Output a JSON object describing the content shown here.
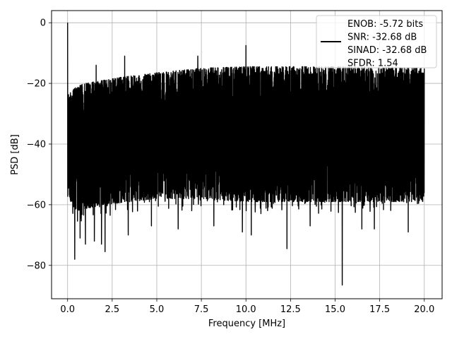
{
  "chart_data": {
    "type": "line",
    "title": "",
    "xlabel": "Frequency [MHz]",
    "ylabel": "PSD [dB]",
    "xlim": [
      -0.9,
      21.0
    ],
    "ylim": [
      -91,
      4
    ],
    "grid": true,
    "legend_placement": "top-right",
    "xticks": [
      0.0,
      2.5,
      5.0,
      7.5,
      10.0,
      12.5,
      15.0,
      17.5,
      20.0
    ],
    "xtick_labels": [
      "0.0",
      "2.5",
      "5.0",
      "7.5",
      "10.0",
      "12.5",
      "15.0",
      "17.5",
      "20.0"
    ],
    "yticks": [
      0,
      -20,
      -40,
      -60,
      -80
    ],
    "ytick_labels": [
      "0",
      "−20",
      "−40",
      "−60",
      "−80"
    ],
    "series": [
      {
        "name": "ENOB: -5.72 bits\nSNR: -32.68 dB\nSINAD: -32.68 dB\nSFDR: 1.54",
        "color": "#000000",
        "x_range": [
          0.0,
          20.0
        ],
        "envelope_upper": [
          [
            0.0,
            -24
          ],
          [
            0.5,
            -21
          ],
          [
            1.0,
            -20
          ],
          [
            2.0,
            -19
          ],
          [
            3.0,
            -18
          ],
          [
            5.0,
            -16.5
          ],
          [
            7.5,
            -15
          ],
          [
            10.0,
            -14.5
          ],
          [
            12.5,
            -14.5
          ],
          [
            15.0,
            -14.5
          ],
          [
            17.5,
            -14.5
          ],
          [
            20.0,
            -15
          ]
        ],
        "envelope_lower": [
          [
            0.0,
            -58
          ],
          [
            0.5,
            -62
          ],
          [
            2.0,
            -60
          ],
          [
            5.0,
            -58
          ],
          [
            7.5,
            -58
          ],
          [
            10.0,
            -59
          ],
          [
            12.5,
            -59
          ],
          [
            15.0,
            -59
          ],
          [
            17.5,
            -59
          ],
          [
            20.0,
            -59
          ]
        ],
        "peaks": [
          {
            "x": 0.0,
            "y": 0.0
          },
          {
            "x": 1.6,
            "y": -14
          },
          {
            "x": 3.2,
            "y": -11
          },
          {
            "x": 7.3,
            "y": -11
          },
          {
            "x": 10.0,
            "y": -7.5
          }
        ],
        "dips": [
          {
            "x": 0.4,
            "y": -78
          },
          {
            "x": 0.7,
            "y": -71
          },
          {
            "x": 1.0,
            "y": -73
          },
          {
            "x": 1.5,
            "y": -72
          },
          {
            "x": 1.9,
            "y": -73
          },
          {
            "x": 2.1,
            "y": -75.5
          },
          {
            "x": 3.4,
            "y": -70
          },
          {
            "x": 4.7,
            "y": -67
          },
          {
            "x": 6.2,
            "y": -68
          },
          {
            "x": 8.2,
            "y": -67
          },
          {
            "x": 9.8,
            "y": -69
          },
          {
            "x": 10.3,
            "y": -70
          },
          {
            "x": 12.3,
            "y": -74.5
          },
          {
            "x": 13.6,
            "y": -67
          },
          {
            "x": 15.4,
            "y": -86.5
          },
          {
            "x": 16.5,
            "y": -68
          },
          {
            "x": 17.2,
            "y": -68
          },
          {
            "x": 19.1,
            "y": -69
          }
        ]
      }
    ]
  }
}
